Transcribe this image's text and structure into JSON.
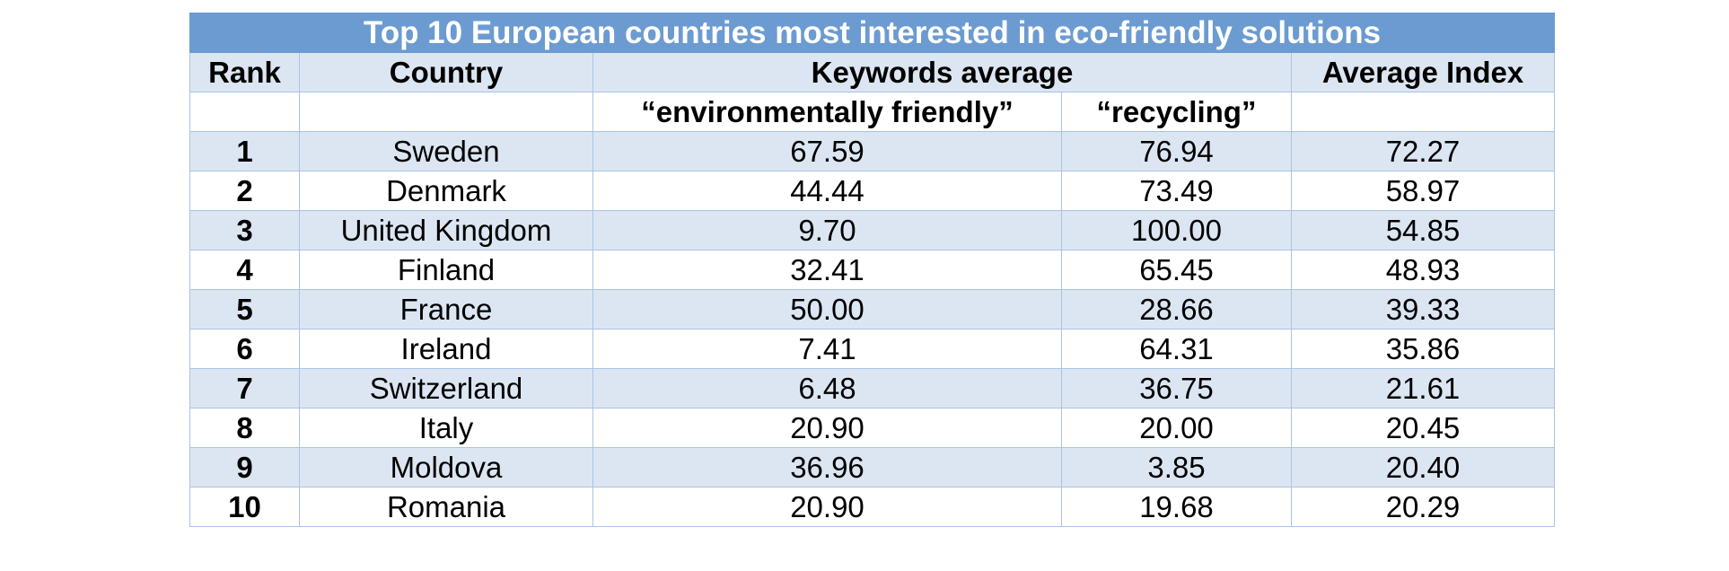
{
  "table": {
    "title": "Top 10 European countries most interested in eco-friendly solutions",
    "headers": {
      "rank": "Rank",
      "country": "Country",
      "keywords": "Keywords average",
      "average_index": "Average Index",
      "kw1": "“environmentally friendly”",
      "kw2": "“recycling”"
    },
    "rows": [
      {
        "rank": "1",
        "country": "Sweden",
        "env": "67.59",
        "rec": "76.94",
        "avg": "72.27"
      },
      {
        "rank": "2",
        "country": "Denmark",
        "env": "44.44",
        "rec": "73.49",
        "avg": "58.97"
      },
      {
        "rank": "3",
        "country": "United Kingdom",
        "env": "9.70",
        "rec": "100.00",
        "avg": "54.85"
      },
      {
        "rank": "4",
        "country": "Finland",
        "env": "32.41",
        "rec": "65.45",
        "avg": "48.93"
      },
      {
        "rank": "5",
        "country": "France",
        "env": "50.00",
        "rec": "28.66",
        "avg": "39.33"
      },
      {
        "rank": "6",
        "country": "Ireland",
        "env": "7.41",
        "rec": "64.31",
        "avg": "35.86"
      },
      {
        "rank": "7",
        "country": "Switzerland",
        "env": "6.48",
        "rec": "36.75",
        "avg": "21.61"
      },
      {
        "rank": "8",
        "country": "Italy",
        "env": "20.90",
        "rec": "20.00",
        "avg": "20.45"
      },
      {
        "rank": "9",
        "country": "Moldova",
        "env": "36.96",
        "rec": "3.85",
        "avg": "20.40"
      },
      {
        "rank": "10",
        "country": "Romania",
        "env": "20.90",
        "rec": "19.68",
        "avg": "20.29"
      }
    ]
  },
  "colors": {
    "title_bg": "#6b9bd1",
    "shaded_row": "#dce6f2",
    "border": "#a9c4e4"
  }
}
